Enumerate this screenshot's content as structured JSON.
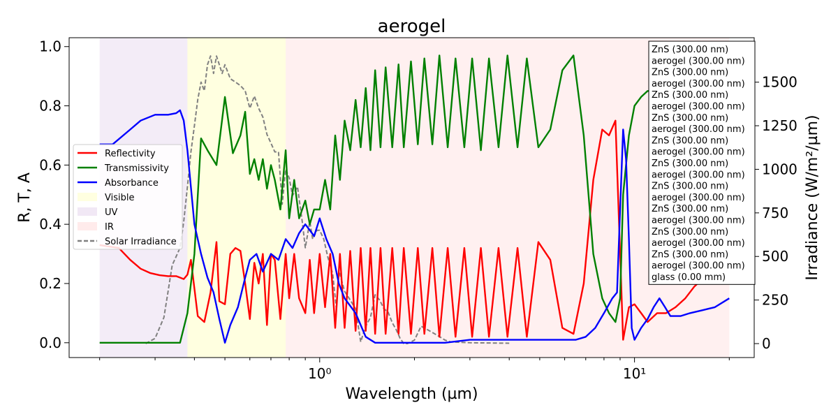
{
  "chart_data": {
    "type": "line",
    "title": "aerogel",
    "xlabel": "Wavelength (µm)",
    "ylabel": "R, T, A",
    "y2label": "Irradiance (W/m²/µm)",
    "xscale": "log",
    "xlim": [
      0.16,
      24
    ],
    "ylim": [
      -0.05,
      1.03
    ],
    "y2lim": [
      -80,
      1755
    ],
    "x_ticks": [
      {
        "value": 1,
        "label": "10⁰"
      },
      {
        "value": 10,
        "label": "10¹"
      }
    ],
    "y_ticks": [
      {
        "value": 0.0,
        "label": "0.0"
      },
      {
        "value": 0.2,
        "label": "0.2"
      },
      {
        "value": 0.4,
        "label": "0.4"
      },
      {
        "value": 0.6,
        "label": "0.6"
      },
      {
        "value": 0.8,
        "label": "0.8"
      },
      {
        "value": 1.0,
        "label": "1.0"
      }
    ],
    "y2_ticks": [
      {
        "value": 0,
        "label": "0"
      },
      {
        "value": 250,
        "label": "250"
      },
      {
        "value": 500,
        "label": "500"
      },
      {
        "value": 750,
        "label": "750"
      },
      {
        "value": 1000,
        "label": "1000"
      },
      {
        "value": 1250,
        "label": "1250"
      },
      {
        "value": 1500,
        "label": "1500"
      }
    ],
    "grid": false,
    "legend_position": "center-left",
    "regions": [
      {
        "name": "UV",
        "from": 0.2,
        "to": 0.38,
        "color": "#8e44ad",
        "opacity": 0.1
      },
      {
        "name": "Visible",
        "from": 0.38,
        "to": 0.78,
        "color": "#ffff99",
        "opacity": 0.3
      },
      {
        "name": "IR",
        "from": 0.78,
        "to": 20,
        "color": "#ff9999",
        "opacity": 0.15
      }
    ],
    "series": [
      {
        "name": "Reflectivity",
        "color": "#ff0000",
        "axis": "left",
        "x": [
          0.2,
          0.23,
          0.25,
          0.27,
          0.29,
          0.31,
          0.33,
          0.35,
          0.36,
          0.37,
          0.38,
          0.39,
          0.41,
          0.43,
          0.45,
          0.47,
          0.48,
          0.5,
          0.52,
          0.54,
          0.56,
          0.58,
          0.6,
          0.62,
          0.64,
          0.66,
          0.68,
          0.7,
          0.72,
          0.75,
          0.78,
          0.8,
          0.83,
          0.86,
          0.9,
          0.93,
          0.96,
          1.0,
          1.04,
          1.08,
          1.12,
          1.16,
          1.2,
          1.25,
          1.3,
          1.35,
          1.4,
          1.45,
          1.5,
          1.56,
          1.62,
          1.7,
          1.78,
          1.85,
          1.95,
          2.05,
          2.15,
          2.28,
          2.4,
          2.55,
          2.7,
          2.88,
          3.05,
          3.25,
          3.45,
          3.7,
          3.95,
          4.25,
          4.55,
          4.95,
          5.4,
          5.9,
          6.4,
          6.9,
          7.4,
          7.9,
          8.3,
          8.7,
          9.0,
          9.2,
          9.6,
          10.0,
          10.5,
          11.0,
          11.8,
          12.6,
          13.5,
          14.5,
          15.5,
          17.0,
          18.5,
          20.0
        ],
        "y": [
          0.33,
          0.32,
          0.28,
          0.25,
          0.235,
          0.228,
          0.225,
          0.225,
          0.22,
          0.215,
          0.23,
          0.28,
          0.09,
          0.07,
          0.17,
          0.34,
          0.14,
          0.13,
          0.3,
          0.32,
          0.31,
          0.2,
          0.08,
          0.27,
          0.2,
          0.3,
          0.06,
          0.3,
          0.28,
          0.08,
          0.3,
          0.15,
          0.3,
          0.15,
          0.1,
          0.28,
          0.1,
          0.3,
          0.12,
          0.3,
          0.05,
          0.3,
          0.05,
          0.31,
          0.04,
          0.32,
          0.04,
          0.32,
          0.03,
          0.32,
          0.03,
          0.32,
          0.03,
          0.32,
          0.03,
          0.32,
          0.03,
          0.32,
          0.02,
          0.32,
          0.02,
          0.32,
          0.02,
          0.32,
          0.02,
          0.32,
          0.02,
          0.32,
          0.02,
          0.34,
          0.28,
          0.05,
          0.03,
          0.2,
          0.55,
          0.72,
          0.7,
          0.75,
          0.3,
          0.01,
          0.12,
          0.13,
          0.1,
          0.07,
          0.1,
          0.1,
          0.12,
          0.15,
          0.19,
          0.23,
          0.27,
          0.3
        ]
      },
      {
        "name": "Transmissivity",
        "color": "#008000",
        "axis": "left",
        "x": [
          0.2,
          0.25,
          0.3,
          0.34,
          0.36,
          0.38,
          0.4,
          0.42,
          0.44,
          0.47,
          0.5,
          0.53,
          0.56,
          0.58,
          0.6,
          0.62,
          0.64,
          0.66,
          0.68,
          0.7,
          0.72,
          0.75,
          0.78,
          0.8,
          0.83,
          0.86,
          0.9,
          0.93,
          0.96,
          1.0,
          1.04,
          1.08,
          1.12,
          1.16,
          1.2,
          1.25,
          1.3,
          1.35,
          1.4,
          1.45,
          1.5,
          1.56,
          1.62,
          1.7,
          1.78,
          1.85,
          1.95,
          2.05,
          2.15,
          2.28,
          2.4,
          2.55,
          2.7,
          2.88,
          3.05,
          3.25,
          3.45,
          3.7,
          3.95,
          4.25,
          4.55,
          4.95,
          5.4,
          5.9,
          6.4,
          6.9,
          7.4,
          7.9,
          8.3,
          8.7,
          9.0,
          9.2,
          9.6,
          10.0,
          10.5,
          11.0,
          11.8,
          12.6,
          13.5,
          15.0,
          17.0,
          19.0,
          20.0
        ],
        "y": [
          0.0,
          0.0,
          0.0,
          0.0,
          0.0,
          0.1,
          0.3,
          0.69,
          0.65,
          0.6,
          0.83,
          0.64,
          0.7,
          0.78,
          0.57,
          0.62,
          0.55,
          0.62,
          0.52,
          0.6,
          0.55,
          0.45,
          0.65,
          0.42,
          0.55,
          0.42,
          0.48,
          0.4,
          0.45,
          0.45,
          0.55,
          0.45,
          0.7,
          0.55,
          0.75,
          0.65,
          0.82,
          0.66,
          0.86,
          0.65,
          0.92,
          0.66,
          0.93,
          0.66,
          0.94,
          0.66,
          0.95,
          0.67,
          0.96,
          0.67,
          0.97,
          0.66,
          0.96,
          0.66,
          0.96,
          0.65,
          0.96,
          0.66,
          0.97,
          0.66,
          0.96,
          0.66,
          0.72,
          0.92,
          0.97,
          0.7,
          0.3,
          0.15,
          0.1,
          0.07,
          0.15,
          0.5,
          0.7,
          0.8,
          0.83,
          0.85,
          0.85,
          0.83,
          0.8,
          0.75,
          0.72,
          0.72,
          0.7
        ]
      },
      {
        "name": "Absorbance",
        "color": "#0000ff",
        "axis": "left",
        "x": [
          0.2,
          0.22,
          0.25,
          0.27,
          0.3,
          0.33,
          0.35,
          0.36,
          0.37,
          0.38,
          0.4,
          0.42,
          0.44,
          0.46,
          0.48,
          0.5,
          0.52,
          0.55,
          0.58,
          0.6,
          0.63,
          0.66,
          0.7,
          0.74,
          0.78,
          0.82,
          0.86,
          0.9,
          0.93,
          0.96,
          1.0,
          1.05,
          1.1,
          1.15,
          1.2,
          1.3,
          1.4,
          1.5,
          1.6,
          1.8,
          2.0,
          2.5,
          3.0,
          3.5,
          4.0,
          4.5,
          5.0,
          5.5,
          6.0,
          6.5,
          7.0,
          7.5,
          8.0,
          8.5,
          8.8,
          9.0,
          9.2,
          9.4,
          9.6,
          9.8,
          10.0,
          10.5,
          11.0,
          11.5,
          12.0,
          12.5,
          13.0,
          14.0,
          15.0,
          16.5,
          18.0,
          20.0
        ],
        "y": [
          0.67,
          0.67,
          0.72,
          0.75,
          0.77,
          0.77,
          0.775,
          0.785,
          0.75,
          0.65,
          0.4,
          0.3,
          0.22,
          0.17,
          0.08,
          0.0,
          0.06,
          0.12,
          0.22,
          0.28,
          0.3,
          0.24,
          0.3,
          0.28,
          0.35,
          0.32,
          0.37,
          0.4,
          0.38,
          0.36,
          0.42,
          0.35,
          0.3,
          0.2,
          0.15,
          0.1,
          0.02,
          0.0,
          0.0,
          0.0,
          0.0,
          0.0,
          0.01,
          0.01,
          0.01,
          0.01,
          0.01,
          0.01,
          0.01,
          0.01,
          0.02,
          0.05,
          0.1,
          0.15,
          0.17,
          0.45,
          0.72,
          0.62,
          0.35,
          0.05,
          0.01,
          0.05,
          0.08,
          0.12,
          0.15,
          0.12,
          0.09,
          0.09,
          0.1,
          0.11,
          0.12,
          0.15
        ]
      },
      {
        "name": "Solar Irradiance",
        "color": "#808080",
        "axis": "right",
        "dashed": true,
        "x": [
          0.28,
          0.3,
          0.32,
          0.33,
          0.34,
          0.35,
          0.36,
          0.37,
          0.38,
          0.39,
          0.4,
          0.41,
          0.42,
          0.43,
          0.44,
          0.45,
          0.46,
          0.47,
          0.48,
          0.49,
          0.5,
          0.52,
          0.54,
          0.56,
          0.58,
          0.6,
          0.62,
          0.64,
          0.66,
          0.68,
          0.7,
          0.72,
          0.74,
          0.76,
          0.78,
          0.8,
          0.82,
          0.85,
          0.88,
          0.9,
          0.93,
          0.95,
          0.98,
          1.0,
          1.03,
          1.06,
          1.1,
          1.13,
          1.15,
          1.2,
          1.25,
          1.3,
          1.35,
          1.4,
          1.45,
          1.5,
          1.55,
          1.6,
          1.65,
          1.7,
          1.75,
          1.8,
          1.85,
          1.9,
          2.0,
          2.1,
          2.2,
          2.3,
          2.4,
          2.5,
          2.6,
          3.0,
          4.0
        ],
        "y": [
          0,
          30,
          150,
          300,
          450,
          500,
          550,
          700,
          900,
          1100,
          1250,
          1400,
          1500,
          1450,
          1600,
          1650,
          1550,
          1650,
          1600,
          1550,
          1600,
          1520,
          1500,
          1480,
          1450,
          1350,
          1420,
          1350,
          1300,
          1200,
          1150,
          1100,
          1100,
          800,
          1000,
          950,
          850,
          900,
          700,
          550,
          700,
          600,
          650,
          650,
          600,
          500,
          400,
          200,
          420,
          300,
          250,
          200,
          10,
          100,
          150,
          280,
          250,
          200,
          180,
          120,
          80,
          30,
          0,
          0,
          20,
          100,
          80,
          60,
          40,
          20,
          10,
          5,
          2
        ]
      }
    ]
  },
  "legend": [
    {
      "label": "Reflectivity",
      "kind": "line",
      "color": "#ff0000"
    },
    {
      "label": "Transmissivity",
      "kind": "line",
      "color": "#008000"
    },
    {
      "label": "Absorbance",
      "kind": "line",
      "color": "#0000ff"
    },
    {
      "label": "Visible",
      "kind": "patch",
      "color": "#ffff99",
      "opacity": 0.3
    },
    {
      "label": "UV",
      "kind": "patch",
      "color": "#8e44ad",
      "opacity": 0.12
    },
    {
      "label": "IR",
      "kind": "patch",
      "color": "#ff9999",
      "opacity": 0.2
    },
    {
      "label": "Solar Irradiance",
      "kind": "dash",
      "color": "#808080"
    }
  ],
  "layers_box": [
    "ZnS (300.00 nm)",
    "aerogel (300.00 nm)",
    "ZnS (300.00 nm)",
    "aerogel (300.00 nm)",
    "ZnS (300.00 nm)",
    "aerogel (300.00 nm)",
    "ZnS (300.00 nm)",
    "aerogel (300.00 nm)",
    "ZnS (300.00 nm)",
    "aerogel (300.00 nm)",
    "ZnS (300.00 nm)",
    "aerogel (300.00 nm)",
    "ZnS (300.00 nm)",
    "aerogel (300.00 nm)",
    "ZnS (300.00 nm)",
    "aerogel (300.00 nm)",
    "ZnS (300.00 nm)",
    "aerogel (300.00 nm)",
    "ZnS (300.00 nm)",
    "aerogel (300.00 nm)",
    "glass (0.00 mm)"
  ]
}
